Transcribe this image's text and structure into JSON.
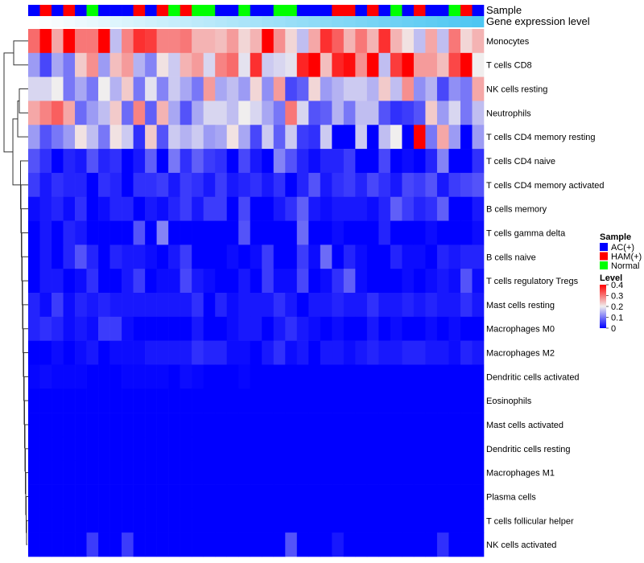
{
  "chart_data": {
    "type": "heatmap",
    "title": "",
    "annotations": {
      "sample_label": "Sample",
      "gene_label": "Gene expression level",
      "sample_groups": [
        "AC(+)",
        "HAM(+)",
        "AC(+)",
        "HAM(+)",
        "AC(+)",
        "Normal",
        "AC(+)",
        "AC(+)",
        "AC(+)",
        "HAM(+)",
        "AC(+)",
        "HAM(+)",
        "Normal",
        "HAM(+)",
        "Normal",
        "Normal",
        "AC(+)",
        "AC(+)",
        "Normal",
        "AC(+)",
        "AC(+)",
        "Normal",
        "Normal",
        "AC(+)",
        "AC(+)",
        "AC(+)",
        "HAM(+)",
        "HAM(+)",
        "AC(+)",
        "HAM(+)",
        "AC(+)",
        "Normal",
        "AC(+)",
        "HAM(+)",
        "AC(+)",
        "AC(+)",
        "Normal",
        "HAM(+)",
        "AC(+)"
      ]
    },
    "rows": [
      "Monocytes",
      "T cells CD8",
      "NK cells resting",
      "Neutrophils",
      "T cells CD4 memory resting",
      "T cells CD4 naive",
      "T cells CD4 memory activated",
      "B cells memory",
      "T cells gamma delta",
      "B cells naive",
      "T cells regulatory  Tregs",
      "Mast cells resting",
      "Macrophages M0",
      "Macrophages M2",
      "Dendritic cells activated",
      "Eosinophils",
      "Mast cells activated",
      "Dendritic cells resting",
      "Macrophages M1",
      "Plasma cells",
      "T cells follicular helper",
      "NK cells activated"
    ],
    "values": [
      [
        0.31,
        0.4,
        0.26,
        0.4,
        0.3,
        0.3,
        0.4,
        0.16,
        0.29,
        0.36,
        0.35,
        0.29,
        0.29,
        0.3,
        0.25,
        0.25,
        0.24,
        0.27,
        0.22,
        0.25,
        0.4,
        0.28,
        0.22,
        0.16,
        0.26,
        0.36,
        0.32,
        0.25,
        0.3,
        0.25,
        0.36,
        0.25,
        0.21,
        0.16,
        0.26,
        0.16,
        0.3,
        0.22,
        0.25
      ],
      [
        0.13,
        0.06,
        0.14,
        0.1,
        0.23,
        0.28,
        0.13,
        0.24,
        0.27,
        0.15,
        0.11,
        0.21,
        0.17,
        0.25,
        0.27,
        0.18,
        0.29,
        0.31,
        0.19,
        0.36,
        0.17,
        0.18,
        0.19,
        0.37,
        0.4,
        0.24,
        0.37,
        0.39,
        0.28,
        0.4,
        0.16,
        0.35,
        0.4,
        0.27,
        0.27,
        0.24,
        0.34,
        0.4,
        0.2
      ],
      [
        0.18,
        0.18,
        0.2,
        0.1,
        0.14,
        0.1,
        0.2,
        0.15,
        0.23,
        0.1,
        0.19,
        0.11,
        0.17,
        0.14,
        0.1,
        0.27,
        0.14,
        0.16,
        0.13,
        0.22,
        0.12,
        0.27,
        0.06,
        0.08,
        0.22,
        0.13,
        0.15,
        0.17,
        0.17,
        0.15,
        0.23,
        0.16,
        0.28,
        0.12,
        0.15,
        0.06,
        0.12,
        0.1,
        0.26
      ],
      [
        0.26,
        0.29,
        0.32,
        0.26,
        0.09,
        0.13,
        0.16,
        0.23,
        0.09,
        0.29,
        0.08,
        0.25,
        0.14,
        0.07,
        0.14,
        0.18,
        0.18,
        0.16,
        0.2,
        0.18,
        0.14,
        0.1,
        0.3,
        0.18,
        0.07,
        0.08,
        0.15,
        0.1,
        0.16,
        0.16,
        0.07,
        0.04,
        0.05,
        0.07,
        0.23,
        0.13,
        0.18,
        0.1,
        0.16
      ],
      [
        0.13,
        0.07,
        0.1,
        0.13,
        0.21,
        0.16,
        0.1,
        0.21,
        0.17,
        0.04,
        0.23,
        0.07,
        0.17,
        0.15,
        0.17,
        0.13,
        0.14,
        0.21,
        0.14,
        0.06,
        0.17,
        0.08,
        0.17,
        0.05,
        0.04,
        0.17,
        0,
        0,
        0.17,
        0,
        0.16,
        0.2,
        0,
        0.4,
        0.1,
        0.26,
        0.13,
        0,
        0.13
      ],
      [
        0.07,
        0.04,
        0,
        0.03,
        0.02,
        0.07,
        0.03,
        0.04,
        0,
        0.02,
        0.08,
        0,
        0.1,
        0.04,
        0.08,
        0.05,
        0.04,
        0,
        0.06,
        0.02,
        0,
        0.11,
        0.07,
        0.03,
        0.01,
        0.03,
        0.03,
        0.05,
        0,
        0,
        0.06,
        0,
        0.01,
        0,
        0.03,
        0.11,
        0,
        0,
        0.04
      ],
      [
        0.05,
        0.02,
        0.04,
        0.03,
        0.03,
        0,
        0.04,
        0.03,
        0,
        0.04,
        0.04,
        0.05,
        0.02,
        0.05,
        0.04,
        0.02,
        0.05,
        0.02,
        0.03,
        0.04,
        0.02,
        0.04,
        0,
        0.03,
        0.07,
        0.02,
        0.04,
        0.05,
        0.03,
        0.06,
        0.04,
        0.02,
        0.06,
        0.05,
        0.07,
        0.02,
        0.05,
        0.06,
        0.07
      ],
      [
        0.01,
        0.02,
        0.03,
        0.01,
        0.04,
        0,
        0.01,
        0.03,
        0.03,
        0,
        0.02,
        0.01,
        0.03,
        0.05,
        0.02,
        0.05,
        0.05,
        0,
        0.06,
        0,
        0,
        0.02,
        0.04,
        0.08,
        0.02,
        0.01,
        0.02,
        0.02,
        0.02,
        0.01,
        0.03,
        0.08,
        0.05,
        0.03,
        0.04,
        0.08,
        0,
        0,
        0.02
      ],
      [
        0,
        0.02,
        0,
        0.03,
        0.02,
        0,
        0,
        0,
        0,
        0.07,
        0,
        0.11,
        0,
        0,
        0,
        0,
        0,
        0,
        0.07,
        0,
        0,
        0,
        0,
        0.09,
        0,
        0,
        0.01,
        0,
        0,
        0,
        0.03,
        0,
        0,
        0,
        0.01,
        0,
        0,
        0,
        0.01
      ],
      [
        0,
        0.02,
        0,
        0.03,
        0.07,
        0.03,
        0,
        0.03,
        0.02,
        0.02,
        0.01,
        0,
        0.02,
        0.05,
        0,
        0,
        0,
        0.01,
        0,
        0.01,
        0.05,
        0,
        0,
        0.05,
        0.01,
        0.09,
        0,
        0.03,
        0.01,
        0,
        0,
        0.03,
        0.01,
        0.01,
        0,
        0.03,
        0.02,
        0.03,
        0.03
      ],
      [
        0,
        0.02,
        0.02,
        0,
        0.01,
        0.04,
        0,
        0,
        0.02,
        0.05,
        0,
        0.01,
        0.01,
        0.06,
        0.02,
        0.01,
        0,
        0,
        0.02,
        0,
        0.05,
        0.01,
        0.01,
        0.06,
        0,
        0.01,
        0.04,
        0.08,
        0.01,
        0,
        0,
        0,
        0.01,
        0,
        0.01,
        0.02,
        0.01,
        0.07,
        0.01
      ],
      [
        0.03,
        0.01,
        0.05,
        0.01,
        0.03,
        0.02,
        0.03,
        0.02,
        0.02,
        0.02,
        0.02,
        0.02,
        0.02,
        0.02,
        0.04,
        0,
        0.03,
        0.01,
        0.02,
        0.02,
        0.02,
        0.04,
        0.02,
        0,
        0.02,
        0.02,
        0.03,
        0.02,
        0.02,
        0.04,
        0.02,
        0.02,
        0.03,
        0.02,
        0.03,
        0.02,
        0.02,
        0.04,
        0.02
      ],
      [
        0.03,
        0.04,
        0.03,
        0.01,
        0.02,
        0.01,
        0.05,
        0.05,
        0.01,
        0,
        0,
        0,
        0,
        0,
        0.02,
        0,
        0,
        0.01,
        0.02,
        0.02,
        0,
        0.02,
        0.04,
        0.02,
        0.01,
        0,
        0.01,
        0,
        0,
        0.02,
        0,
        0.01,
        0,
        0,
        0.01,
        0,
        0.01,
        0,
        0
      ],
      [
        0,
        0,
        0.01,
        0,
        0.01,
        0.02,
        0,
        0.01,
        0.01,
        0.01,
        0.02,
        0.02,
        0.02,
        0.02,
        0.04,
        0.03,
        0.03,
        0.01,
        0.01,
        0,
        0.02,
        0.04,
        0.01,
        0.02,
        0,
        0.02,
        0.02,
        0.01,
        0.02,
        0.03,
        0.02,
        0.02,
        0.03,
        0.03,
        0.02,
        0.02,
        0.01,
        0.03,
        0.02
      ],
      [
        0.005,
        0.01,
        0.005,
        0.005,
        0.005,
        0,
        0,
        0,
        0.005,
        0.005,
        0.005,
        0.005,
        0,
        0.01,
        0.005,
        0,
        0,
        0,
        0.005,
        0,
        0,
        0,
        0,
        0,
        0,
        0,
        0,
        0,
        0,
        0,
        0,
        0,
        0,
        0,
        0,
        0,
        0,
        0,
        0
      ],
      [
        0,
        0,
        0,
        0,
        0,
        0,
        0,
        0,
        0,
        0,
        0,
        0,
        0,
        0,
        0,
        0,
        0,
        0,
        0,
        0,
        0,
        0,
        0,
        0,
        0,
        0,
        0,
        0,
        0,
        0,
        0,
        0,
        0,
        0,
        0,
        0,
        0,
        0,
        0
      ],
      [
        0,
        0,
        0,
        0,
        0,
        0,
        0,
        0,
        0,
        0,
        0,
        0,
        0,
        0,
        0,
        0,
        0,
        0,
        0,
        0,
        0,
        0,
        0,
        0,
        0,
        0,
        0,
        0,
        0,
        0,
        0,
        0,
        0,
        0,
        0,
        0,
        0,
        0,
        0
      ],
      [
        0,
        0,
        0,
        0,
        0,
        0,
        0,
        0,
        0,
        0,
        0,
        0,
        0,
        0,
        0,
        0,
        0,
        0,
        0,
        0,
        0,
        0,
        0,
        0,
        0,
        0,
        0,
        0,
        0,
        0,
        0,
        0,
        0,
        0,
        0,
        0,
        0,
        0,
        0
      ],
      [
        0,
        0,
        0,
        0,
        0,
        0,
        0,
        0,
        0,
        0,
        0,
        0,
        0,
        0,
        0,
        0,
        0,
        0,
        0,
        0,
        0,
        0,
        0,
        0,
        0,
        0,
        0,
        0,
        0,
        0,
        0,
        0,
        0,
        0,
        0,
        0,
        0,
        0,
        0
      ],
      [
        0,
        0,
        0,
        0,
        0,
        0,
        0,
        0,
        0,
        0,
        0,
        0,
        0,
        0,
        0,
        0,
        0,
        0,
        0,
        0,
        0,
        0,
        0,
        0,
        0,
        0,
        0,
        0,
        0,
        0,
        0,
        0,
        0,
        0,
        0,
        0,
        0,
        0,
        0
      ],
      [
        0,
        0,
        0,
        0,
        0,
        0,
        0,
        0,
        0,
        0,
        0,
        0,
        0,
        0,
        0,
        0,
        0,
        0,
        0,
        0,
        0,
        0,
        0,
        0,
        0,
        0,
        0,
        0,
        0,
        0,
        0,
        0,
        0,
        0,
        0,
        0,
        0,
        0,
        0
      ],
      [
        0,
        0,
        0,
        0,
        0,
        0.05,
        0,
        0,
        0.05,
        0,
        0,
        0,
        0,
        0,
        0,
        0,
        0,
        0,
        0,
        0,
        0,
        0,
        0.07,
        0,
        0,
        0,
        0.02,
        0,
        0,
        0,
        0,
        0,
        0,
        0,
        0,
        0.04,
        0,
        0,
        0
      ]
    ],
    "color_range": [
      0,
      0.4
    ],
    "colors": {
      "low": "#0000FF",
      "mid": "#F0EEEE",
      "high": "#FF0000",
      "gene_low": "#FFFFFF",
      "gene_high": "#4DC6F2"
    },
    "legend": {
      "position": "right",
      "sample_title": "Sample",
      "sample_items": [
        {
          "label": "AC(+)",
          "color": "#0000FF"
        },
        {
          "label": "HAM(+)",
          "color": "#FF0000"
        },
        {
          "label": "Normal",
          "color": "#00FF00"
        }
      ],
      "level_title": "Level",
      "level_ticks": [
        "0.4",
        "0.3",
        "0.2",
        "0.1",
        "0"
      ]
    },
    "dendrogram": "rows"
  }
}
